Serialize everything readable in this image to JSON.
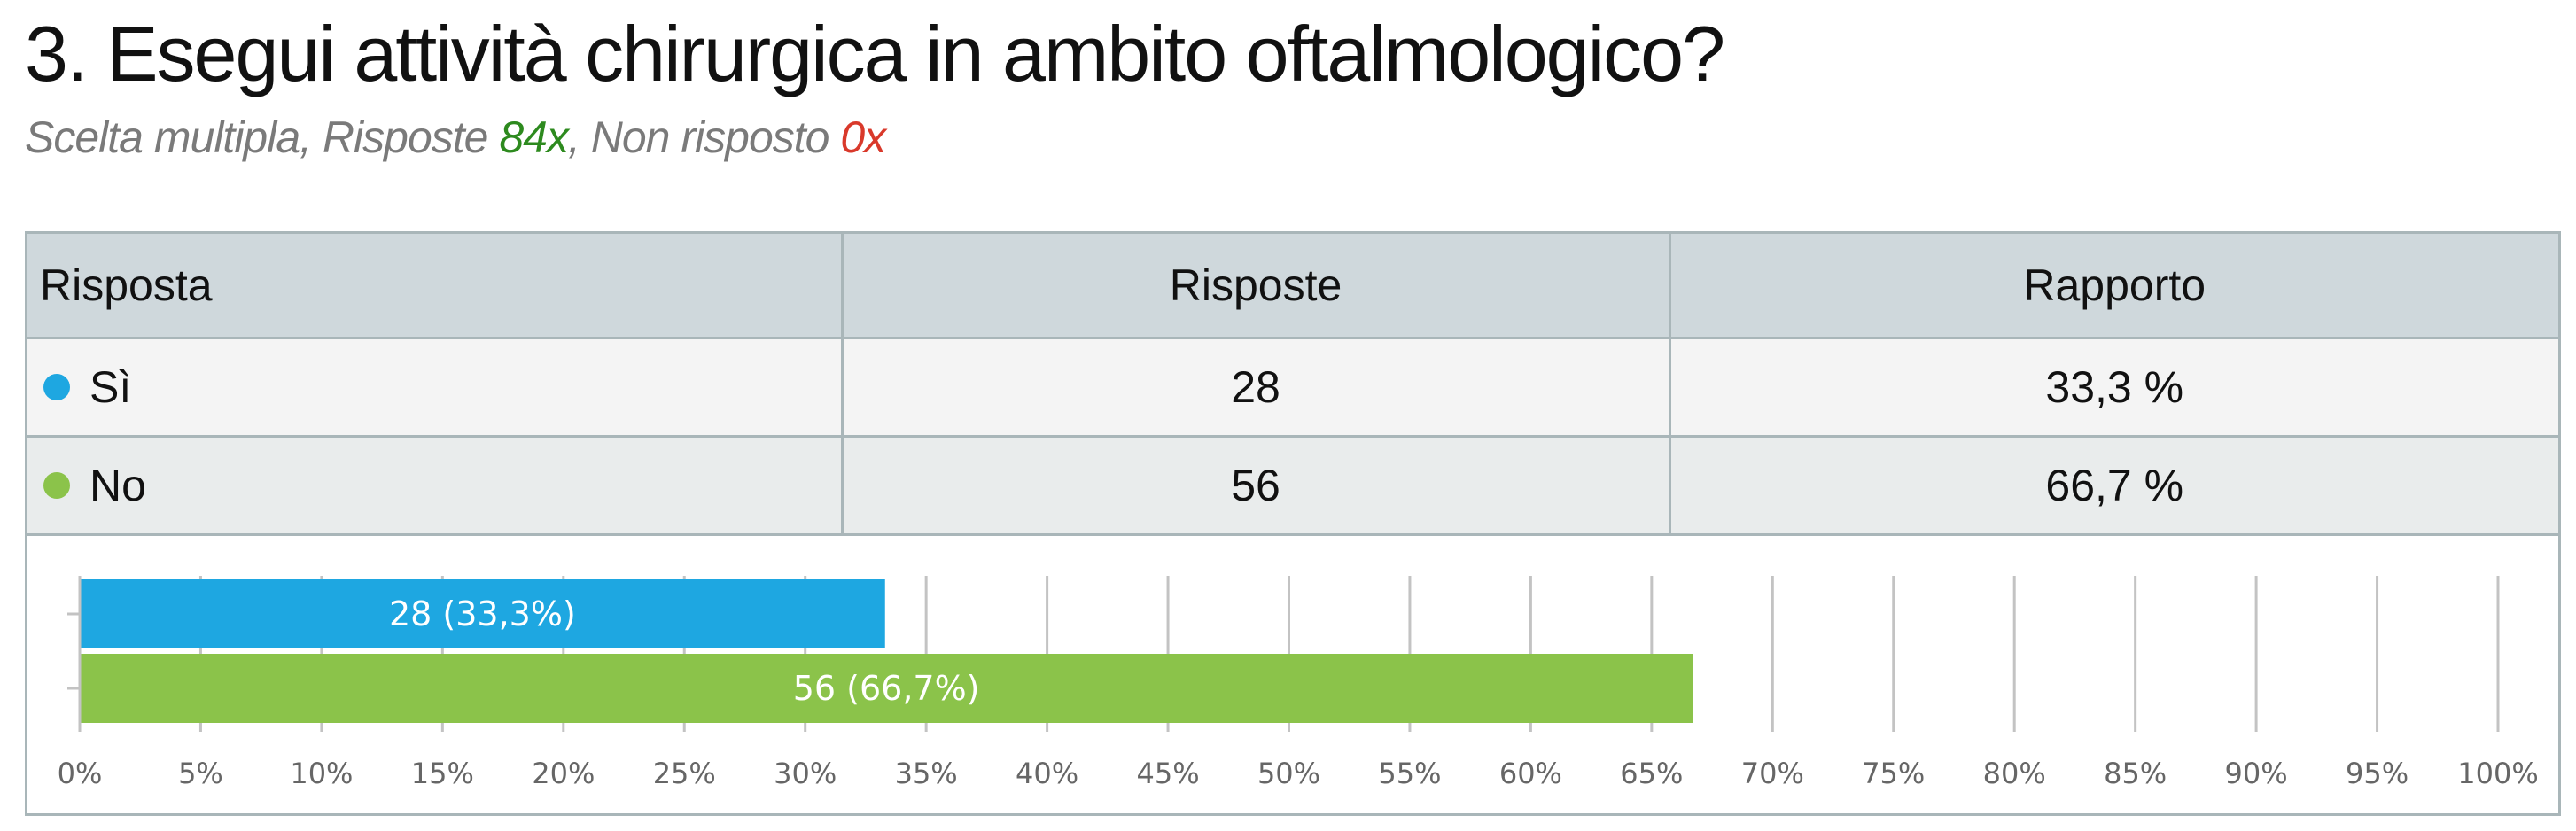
{
  "question": {
    "title": "3. Esegui attività chirurgica in ambito oftalmologico?",
    "subtitle_prefix": "Scelta multipla, Risposte ",
    "answered": "84x",
    "subtitle_mid": ", Non risposto ",
    "not_answered": "0x"
  },
  "table": {
    "headers": [
      "Risposta",
      "Risposte",
      "Rapporto"
    ],
    "rows": [
      {
        "label": "Sì",
        "count": "28",
        "ratio": "33,3 %",
        "color": "#1ea7e1"
      },
      {
        "label": "No",
        "count": "56",
        "ratio": "66,7 %",
        "color": "#8bc34a"
      }
    ]
  },
  "chart_data": {
    "type": "bar",
    "orientation": "horizontal",
    "categories": [
      "Sì",
      "No"
    ],
    "values": [
      33.3,
      66.7
    ],
    "counts": [
      28,
      56
    ],
    "bar_labels": [
      "28 (33,3%)",
      "56 (66,7%)"
    ],
    "colors": [
      "#1ea7e1",
      "#8bc34a"
    ],
    "xlim": [
      0,
      100
    ],
    "xticks": [
      "0%",
      "5%",
      "10%",
      "15%",
      "20%",
      "25%",
      "30%",
      "35%",
      "40%",
      "45%",
      "50%",
      "55%",
      "60%",
      "65%",
      "70%",
      "75%",
      "80%",
      "85%",
      "90%",
      "95%",
      "100%"
    ],
    "grid": true
  }
}
